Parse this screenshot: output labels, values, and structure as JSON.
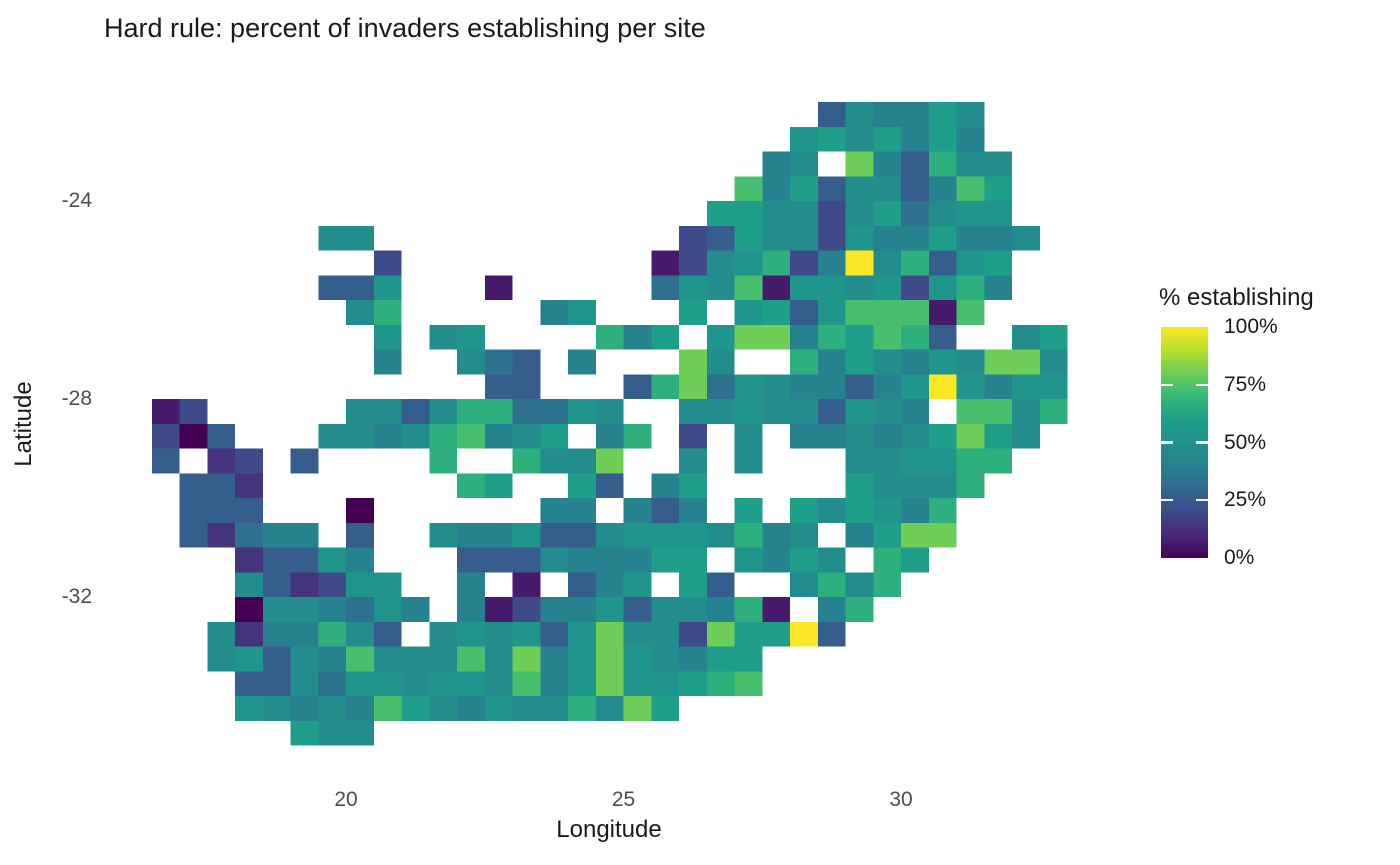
{
  "page": {
    "background": "#ffffff"
  },
  "colors": {
    "title_text": "#1a1a1a",
    "axis_text": "#4d4d4d",
    "axis_title_text": "#1a1a1a"
  },
  "chart_data": {
    "type": "heatmap",
    "title": "Hard rule: percent of invaders establishing per site",
    "xlabel": "Longitude",
    "ylabel": "Latitude",
    "x_ticks": [
      20,
      25,
      30
    ],
    "y_ticks": [
      -24,
      -28,
      -32
    ],
    "axis_ranges": {
      "lon": [
        16.3,
        33.3
      ],
      "lat": [
        -35.3,
        -21.7
      ]
    },
    "grid_lines": false,
    "legend": {
      "title": "% establishing",
      "position": "right",
      "tick_labels": [
        "100%",
        "75%",
        "50%",
        "25%",
        "0%"
      ],
      "tick_values": [
        100,
        75,
        50,
        25,
        0
      ]
    },
    "palette": {
      "name": "viridis",
      "stops": [
        "#440154",
        "#482878",
        "#3e4a89",
        "#31688e",
        "#26828e",
        "#21918c",
        "#1f9e89",
        "#35b779",
        "#6ece58",
        "#b5de2b",
        "#fde725"
      ]
    },
    "tile_grid": {
      "lon_start": 16.5,
      "lat_start": -22.0,
      "cell_deg": 0.5,
      "value_encoding": "each character is one 0.5-degree cell from lon_start eastward; hex digit 0-F => percent establishing = digit/15*100; '.' = no site",
      "rows": [
        "........................476697...",
        ".......................8979696...",
        "......................67.C64A77..",
        ".....................B6947746B9..",
        "....................99773795788..",
        "......77...........3497738669667.",
        "........3.........1378A36F7A489..",
        "......448...1.....587B1887838A6..",
        ".......7A.....68...9.8948BBB1B...",
        "........8.78....A69.8CC6A9BA4..79",
        "........6..754.6...C7..A697687CC7",
        "............44...4AC58766468F8688",
        "13.....7747AA5587..778774876.BB7A",
        "304...7767AB679.6A.3.7.667679C97.",
        "4.23.4....A..A77C..7.7...7788AA..",
        ".442.......A9..94.69.....9777A...",
        ".444...0......66.646.9.97986A....",
        ".42566.4..76684478887A67.69CC....",
        "...24486...444766699.8697.A9.....",
        "...742388..6.1.468.94..7A7A......",
        "...0776586.6136684776A1.6A.......",
        "..7266A74.787848C773C99F4........",
        "..78476B777B7C68C87699...........",
        "...4475887887B68C889AB...........",
        "...87676B976877A7C9..............",
        ".....977........................."
      ]
    }
  }
}
